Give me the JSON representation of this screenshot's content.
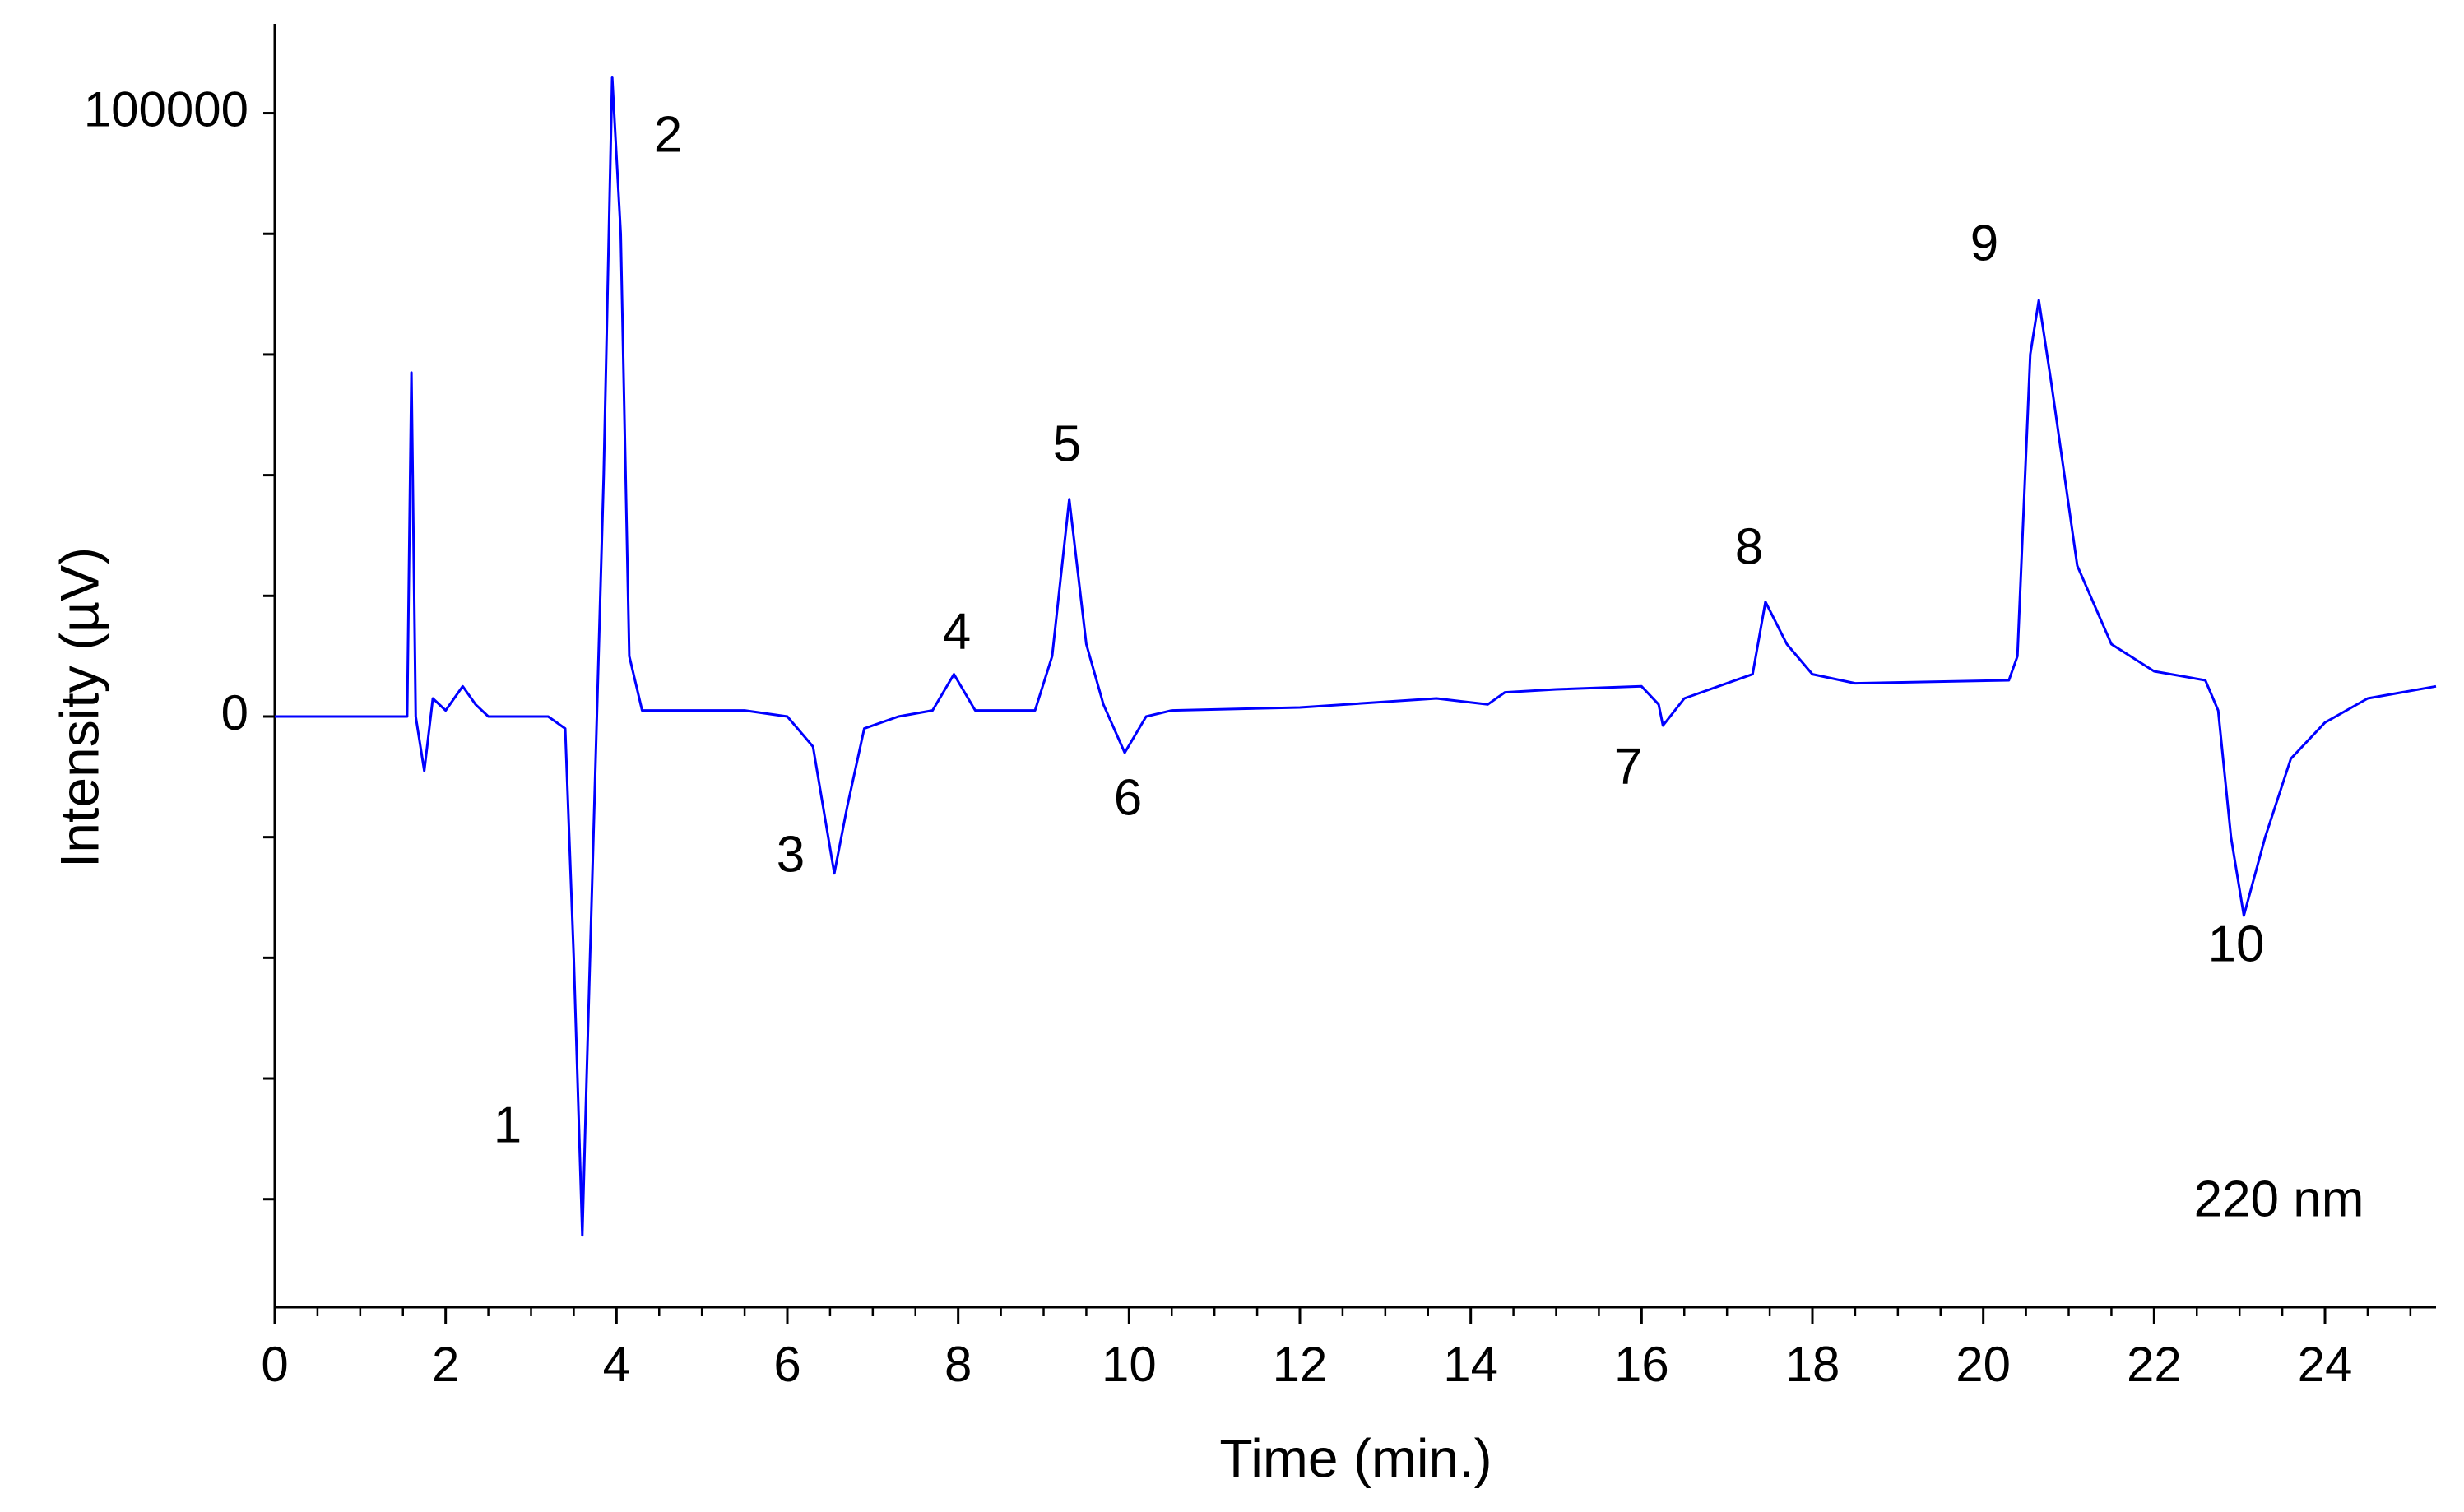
{
  "chart_data": {
    "type": "line",
    "xlabel": "Time (min.)",
    "ylabel": "Intensity (µV)",
    "color": "#0000ff",
    "xlim": [
      0,
      25.3
    ],
    "ylim": [
      -97900,
      114800
    ],
    "xticks": [
      0,
      2,
      4,
      6,
      8,
      10,
      12,
      14,
      16,
      18,
      20,
      22,
      24
    ],
    "xminorticks": [
      0.5,
      1,
      1.5,
      2.5,
      3,
      3.5,
      4.5,
      5,
      5.5,
      6.5,
      7,
      7.5,
      8.5,
      9,
      9.5,
      10.5,
      11,
      11.5,
      12.5,
      13,
      13.5,
      14.5,
      15,
      15.5,
      16.5,
      17,
      17.5,
      18.5,
      19,
      19.5,
      20.5,
      21,
      21.5,
      22.5,
      23,
      23.5,
      24.5,
      25
    ],
    "yticks": [
      0,
      100000
    ],
    "yminorticks": [
      -80000,
      -60000,
      -40000,
      -20000,
      20000,
      40000,
      60000,
      80000
    ],
    "x": [
      0,
      1.5,
      1.55,
      1.6,
      1.65,
      1.75,
      1.85,
      2.0,
      2.2,
      2.35,
      2.5,
      3.2,
      3.4,
      3.5,
      3.6,
      3.65,
      3.75,
      3.85,
      3.95,
      4.05,
      4.15,
      4.3,
      5.5,
      6.0,
      6.3,
      6.55,
      6.7,
      6.9,
      7.3,
      7.7,
      7.95,
      8.2,
      8.9,
      9.1,
      9.3,
      9.5,
      9.7,
      9.95,
      10.2,
      10.5,
      12,
      13.6,
      14.2,
      14.4,
      15,
      16,
      16.2,
      16.25,
      16.5,
      17,
      17.3,
      17.45,
      17.7,
      18,
      18.5,
      20.3,
      20.4,
      20.55,
      20.65,
      20.8,
      21.1,
      21.5,
      22,
      22.6,
      22.75,
      22.9,
      23.05,
      23.3,
      23.6,
      24,
      24.5,
      25.3
    ],
    "values": [
      0,
      0,
      0,
      57000,
      0,
      -9000,
      3000,
      1000,
      5000,
      2000,
      0,
      0,
      -2000,
      -40000,
      -86000,
      -60000,
      -10000,
      40000,
      106000,
      80000,
      10000,
      1000,
      1000,
      0,
      -5000,
      -26000,
      -15000,
      -2000,
      0,
      1000,
      7000,
      1000,
      1000,
      10000,
      36000,
      12000,
      2000,
      -6000,
      0,
      1000,
      1500,
      3000,
      2000,
      4000,
      4500,
      5000,
      2000,
      -1500,
      3000,
      5500,
      7000,
      19000,
      12000,
      7000,
      5500,
      6000,
      10000,
      60000,
      69000,
      55000,
      25000,
      12000,
      7500,
      6000,
      1000,
      -20000,
      -33000,
      -20000,
      -7000,
      -1000,
      3000,
      5000
    ],
    "peak_labels": [
      "1",
      "2",
      "3",
      "4",
      "5",
      "6",
      "7",
      "8",
      "9",
      "10"
    ],
    "wavelength": "220 nm"
  }
}
